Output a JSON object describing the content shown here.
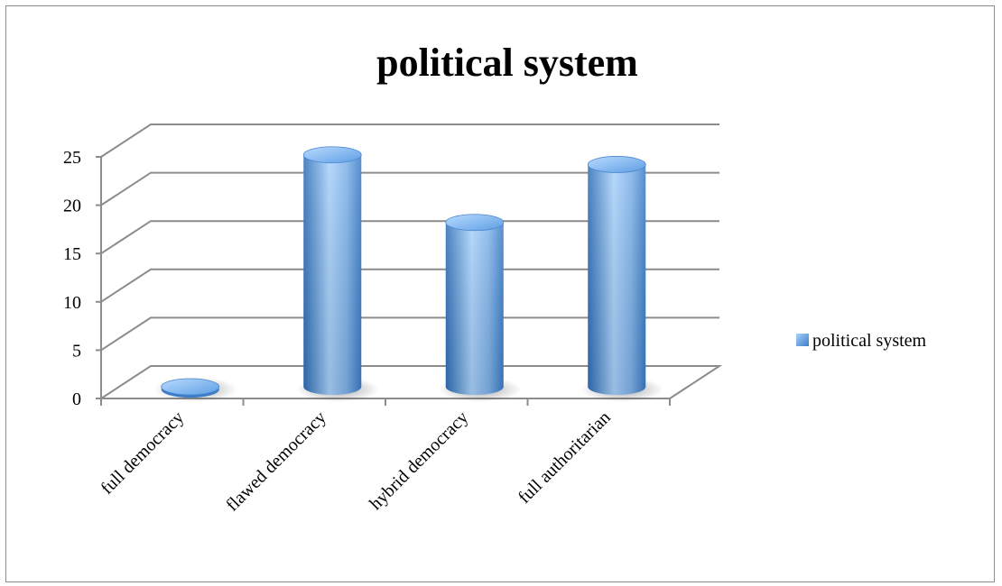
{
  "chart_data": {
    "type": "bar",
    "style": "3d-cylinder",
    "title": "political system",
    "xlabel": "",
    "ylabel": "",
    "categories": [
      "full democracy",
      "flawed democracy",
      "hybrid democracy",
      "full authoritarian"
    ],
    "series": [
      {
        "name": "political system",
        "values": [
          0,
          24,
          17,
          23
        ]
      }
    ],
    "ylim": [
      0,
      25
    ],
    "yticks": [
      "0",
      "5",
      "10",
      "15",
      "20",
      "25"
    ],
    "grid": true,
    "legend": "right",
    "colors": {
      "bar": "#4a90d9",
      "bar_light": "#a9d2fb",
      "bar_dark": "#2f6fb8",
      "grid": "#8c8c8c"
    }
  }
}
